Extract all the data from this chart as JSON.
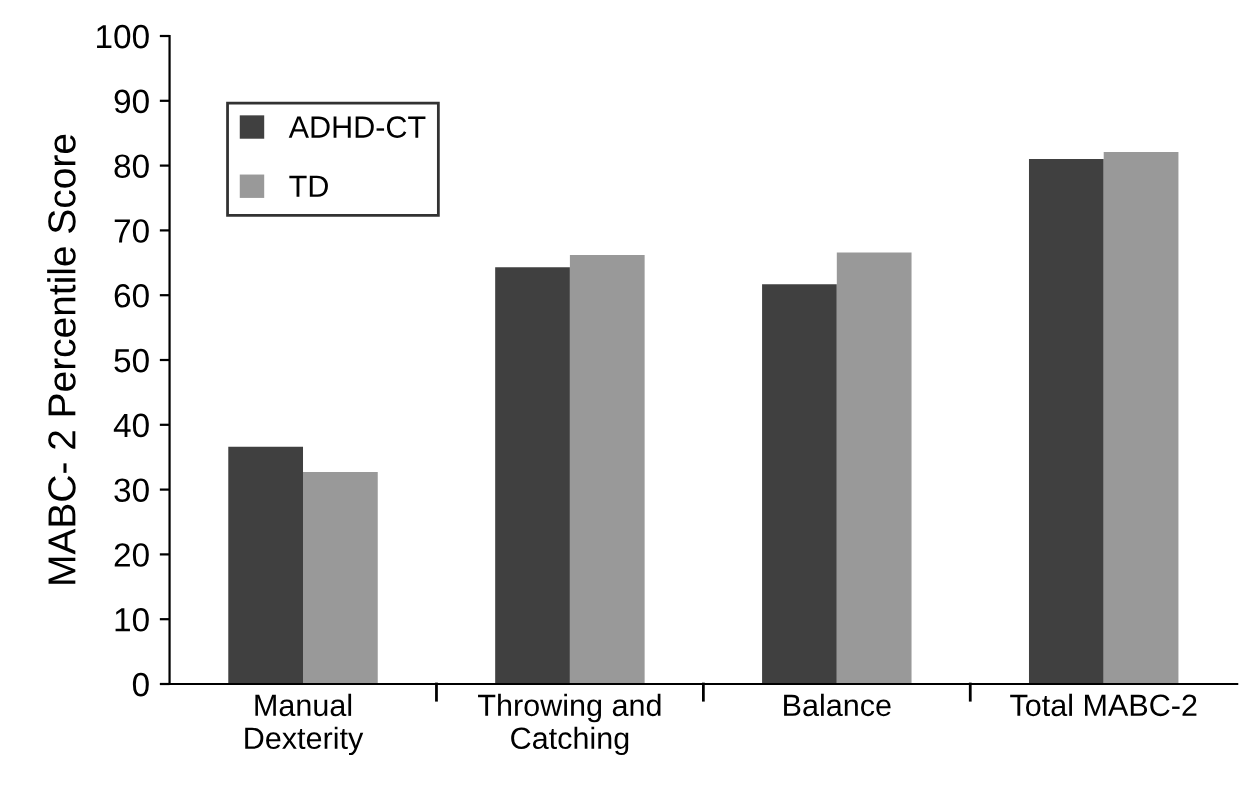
{
  "chart_data": {
    "type": "bar",
    "ylabel": "MABC- 2 Percentile Score",
    "categories": [
      "Manual\nDexterity",
      "Throwing and\nCatching",
      "Balance",
      "Total MABC-2"
    ],
    "series": [
      {
        "name": "ADHD-CT",
        "color": "#404040",
        "values": [
          36.6,
          64.3,
          61.7,
          81.0
        ]
      },
      {
        "name": "TD",
        "color": "#999999",
        "values": [
          32.7,
          66.2,
          66.6,
          82.1
        ]
      }
    ],
    "ylim": [
      0,
      100
    ],
    "yticks": [
      0,
      10,
      20,
      30,
      40,
      50,
      60,
      70,
      80,
      90,
      100
    ],
    "grid": false,
    "legend": "top left"
  }
}
